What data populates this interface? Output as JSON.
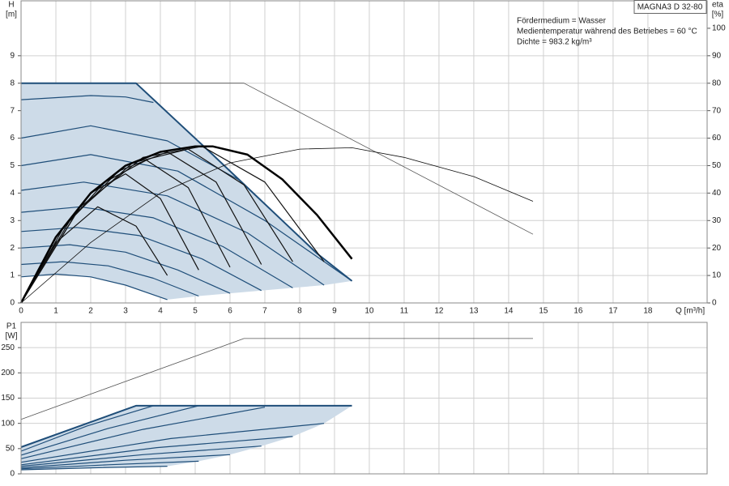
{
  "chart_data": [
    {
      "type": "line",
      "ylabel": "H",
      "yunit": "[m]",
      "y2label": "eta",
      "y2unit": "[%]",
      "xlabel": "Q [m³/h]",
      "box_label": "MAGNA3 D 32-80",
      "annotations": [
        "Fördermedium = Wasser",
        "Medientemperatur während des Betriebes = 60 °C",
        "Dichte = 983.2 kg/m³"
      ],
      "xlim": [
        0,
        19.7
      ],
      "xticks": [
        0,
        1,
        2,
        3,
        4,
        5,
        6,
        7,
        8,
        9,
        10,
        11,
        12,
        13,
        14,
        15,
        16,
        17,
        18
      ],
      "ylim": [
        0,
        11
      ],
      "yticks": [
        0,
        1,
        2,
        3,
        4,
        5,
        6,
        7,
        8,
        9
      ],
      "y2lim": [
        0,
        110
      ],
      "y2ticks": [
        0,
        10,
        20,
        30,
        40,
        50,
        60,
        70,
        80,
        90,
        100
      ],
      "grid": true,
      "show_xtick_labels": true,
      "series": [
        {
          "fill": true,
          "color": "#cddbe8",
          "x": [
            0,
            3.3,
            4.4,
            5.5,
            6.5,
            7.5,
            8.5,
            9.5,
            8.7,
            7.8,
            6.9,
            6.0,
            5.1,
            4.2,
            3,
            2,
            1,
            0
          ],
          "values": [
            8,
            8,
            6.7,
            5.4,
            4.2,
            3.0,
            1.8,
            0.8,
            0.65,
            0.55,
            0.45,
            0.35,
            0.25,
            0.12,
            0.65,
            0.95,
            1.05,
            0.95
          ]
        },
        {
          "color": "#555555",
          "width": 0.8,
          "x": [
            0,
            6.4,
            14.7
          ],
          "values": [
            8,
            8,
            2.5
          ]
        },
        {
          "color": "#1f4e79",
          "width": 1.2,
          "x": [
            0,
            1,
            2,
            3,
            4.2
          ],
          "values": [
            0.95,
            1.05,
            0.95,
            0.65,
            0.12
          ]
        },
        {
          "color": "#1f4e79",
          "width": 1.2,
          "x": [
            0,
            1.2,
            2.5,
            3.8,
            5.1
          ],
          "values": [
            1.4,
            1.5,
            1.35,
            0.9,
            0.25
          ]
        },
        {
          "color": "#1f4e79",
          "width": 1.2,
          "x": [
            0,
            1.4,
            3,
            4.5,
            6
          ],
          "values": [
            2.0,
            2.12,
            1.85,
            1.2,
            0.35
          ]
        },
        {
          "color": "#1f4e79",
          "width": 1.2,
          "x": [
            0,
            1.6,
            3.4,
            5.2,
            6.9
          ],
          "values": [
            2.6,
            2.75,
            2.45,
            1.6,
            0.45
          ]
        },
        {
          "color": "#1f4e79",
          "width": 1.2,
          "x": [
            0,
            1.7,
            3.8,
            5.8,
            7.8
          ],
          "values": [
            3.3,
            3.5,
            3.1,
            2.05,
            0.55
          ]
        },
        {
          "color": "#1f4e79",
          "width": 1.2,
          "x": [
            0,
            1.8,
            4.2,
            6.5,
            8.7
          ],
          "values": [
            4.1,
            4.4,
            3.9,
            2.55,
            0.65
          ]
        },
        {
          "color": "#1f4e79",
          "width": 1.2,
          "x": [
            0,
            2,
            4.5,
            7,
            9.5
          ],
          "values": [
            5.0,
            5.4,
            4.8,
            3.0,
            0.8
          ]
        },
        {
          "color": "#1f4e79",
          "width": 1.2,
          "x": [
            0,
            2,
            4.2,
            6.3
          ],
          "values": [
            6.0,
            6.45,
            5.9,
            4.45
          ]
        },
        {
          "color": "#1f4e79",
          "width": 1.2,
          "x": [
            0,
            2,
            3,
            3.8
          ],
          "values": [
            7.4,
            7.55,
            7.5,
            7.3
          ]
        },
        {
          "color": "#1f4e79",
          "width": 2,
          "x": [
            0,
            3.3,
            4.4,
            5.5,
            6.5,
            7.5,
            8.5,
            9.5
          ],
          "values": [
            8,
            8,
            6.7,
            5.4,
            4.2,
            3.0,
            1.8,
            0.8
          ]
        },
        {
          "axis": "y2",
          "color": "#111111",
          "width": 0.8,
          "x": [
            0,
            2,
            4,
            6,
            8,
            9.5,
            11,
            13,
            14.7
          ],
          "values": [
            0,
            22,
            40,
            51,
            56,
            56.5,
            53,
            46,
            37
          ]
        },
        {
          "axis": "y2",
          "color": "#111111",
          "width": 1.2,
          "x": [
            0,
            1,
            2.2,
            3.3,
            4.2
          ],
          "values": [
            0,
            22,
            35,
            28,
            10
          ]
        },
        {
          "axis": "y2",
          "color": "#111111",
          "width": 1.2,
          "x": [
            0,
            1,
            2,
            3,
            4,
            5.1
          ],
          "values": [
            0,
            24,
            40,
            47,
            38,
            12
          ]
        },
        {
          "axis": "y2",
          "color": "#111111",
          "width": 1.2,
          "x": [
            0,
            1.2,
            2.4,
            3.6,
            4.8,
            6
          ],
          "values": [
            0,
            27,
            44,
            52,
            42,
            13
          ]
        },
        {
          "axis": "y2",
          "color": "#111111",
          "width": 1.2,
          "x": [
            0,
            1.4,
            2.8,
            4.2,
            5.6,
            6.9
          ],
          "values": [
            0,
            30,
            48,
            55,
            44,
            14
          ]
        },
        {
          "axis": "y2",
          "color": "#111111",
          "width": 1.2,
          "x": [
            0,
            1.6,
            3.2,
            4.8,
            6.4,
            7.8
          ],
          "values": [
            0,
            33,
            51,
            56,
            43,
            15
          ]
        },
        {
          "axis": "y2",
          "color": "#111111",
          "width": 1.2,
          "x": [
            0,
            1.7,
            3.5,
            5.2,
            7,
            8.7
          ],
          "values": [
            0,
            35,
            53,
            57,
            44,
            15
          ]
        },
        {
          "axis": "y2",
          "color": "#000000",
          "width": 2.5,
          "x": [
            0,
            1,
            2,
            3,
            4,
            5,
            5.5,
            6.5,
            7.5,
            8.5,
            9.5
          ],
          "values": [
            0,
            24,
            40,
            50,
            55,
            57,
            57,
            54,
            45,
            32,
            16
          ]
        }
      ]
    },
    {
      "type": "line",
      "ylabel": "P1",
      "yunit": "[W]",
      "xlim": [
        0,
        19.7
      ],
      "xticks": [
        0,
        1,
        2,
        3,
        4,
        5,
        6,
        7,
        8,
        9,
        10,
        11,
        12,
        13,
        14,
        15,
        16,
        17,
        18
      ],
      "ylim": [
        0,
        300
      ],
      "yticks": [
        0,
        50,
        100,
        150,
        200,
        250
      ],
      "grid": true,
      "show_xtick_labels": false,
      "series": [
        {
          "fill": true,
          "color": "#cddbe8",
          "x": [
            0,
            3.3,
            9.5,
            8.7,
            7.8,
            6.9,
            6.0,
            5.1,
            4.2,
            0
          ],
          "values": [
            53,
            135,
            135,
            100,
            74,
            55,
            38,
            25,
            15,
            8
          ]
        },
        {
          "color": "#555555",
          "width": 0.8,
          "x": [
            0,
            6.4,
            14.7
          ],
          "values": [
            108,
            268,
            268
          ]
        },
        {
          "color": "#1f4e79",
          "width": 1.2,
          "x": [
            0,
            2.1,
            4.2
          ],
          "values": [
            8,
            12,
            15
          ]
        },
        {
          "color": "#1f4e79",
          "width": 1.2,
          "x": [
            0,
            2.5,
            5.1
          ],
          "values": [
            10,
            18,
            25
          ]
        },
        {
          "color": "#1f4e79",
          "width": 1.2,
          "x": [
            0,
            3,
            6
          ],
          "values": [
            12,
            27,
            38
          ]
        },
        {
          "color": "#1f4e79",
          "width": 1.2,
          "x": [
            0,
            3.5,
            6.9
          ],
          "values": [
            15,
            38,
            55
          ]
        },
        {
          "color": "#1f4e79",
          "width": 1.2,
          "x": [
            0,
            3.9,
            7.8
          ],
          "values": [
            18,
            52,
            74
          ]
        },
        {
          "color": "#1f4e79",
          "width": 1.2,
          "x": [
            0,
            4.3,
            8.7
          ],
          "values": [
            23,
            70,
            100
          ]
        },
        {
          "color": "#1f4e79",
          "width": 1.2,
          "x": [
            0,
            3.5,
            7
          ],
          "values": [
            30,
            88,
            132
          ]
        },
        {
          "color": "#1f4e79",
          "width": 1.2,
          "x": [
            0,
            2.5,
            5.1
          ],
          "values": [
            37,
            90,
            135
          ]
        },
        {
          "color": "#1f4e79",
          "width": 1.2,
          "x": [
            0,
            1.9,
            3.8
          ],
          "values": [
            45,
            95,
            135
          ]
        },
        {
          "color": "#1f4e79",
          "width": 2,
          "x": [
            0,
            3.3,
            9.5
          ],
          "values": [
            53,
            135,
            135
          ]
        }
      ]
    }
  ]
}
